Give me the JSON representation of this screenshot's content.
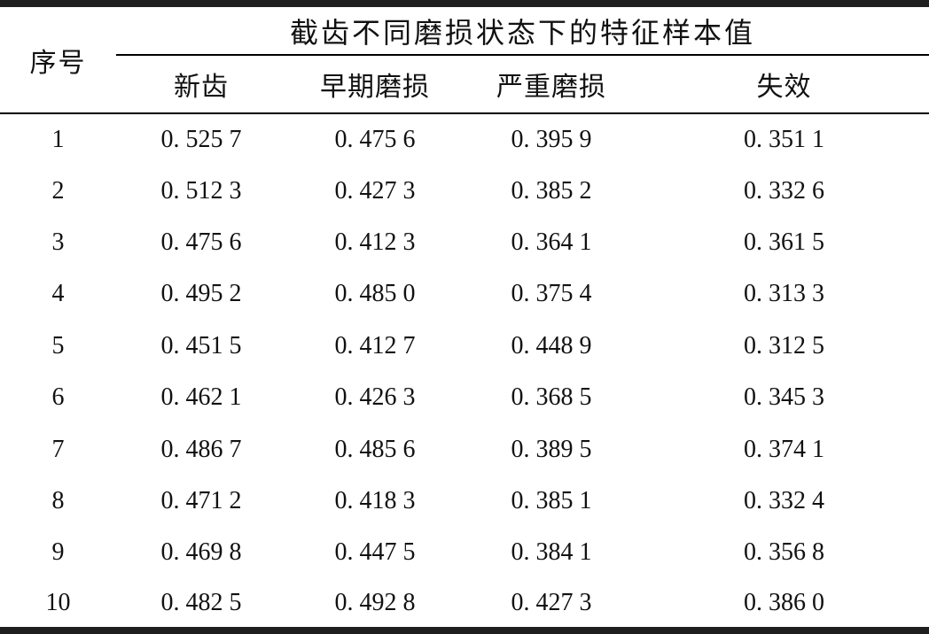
{
  "table": {
    "corner_header": "序号",
    "group_header": "截齿不同磨损状态下的特征样本值",
    "columns": [
      "新齿",
      "早期磨损",
      "严重磨损",
      "失效"
    ],
    "rows": [
      {
        "no": "1",
        "values": [
          "0. 525 7",
          "0. 475 6",
          "0. 395 9",
          "0. 351 1"
        ]
      },
      {
        "no": "2",
        "values": [
          "0. 512 3",
          "0. 427 3",
          "0. 385 2",
          "0. 332 6"
        ]
      },
      {
        "no": "3",
        "values": [
          "0. 475 6",
          "0. 412 3",
          "0. 364 1",
          "0. 361 5"
        ]
      },
      {
        "no": "4",
        "values": [
          "0. 495 2",
          "0. 485 0",
          "0. 375 4",
          "0. 313 3"
        ]
      },
      {
        "no": "5",
        "values": [
          "0. 451 5",
          "0. 412 7",
          "0. 448 9",
          "0. 312 5"
        ]
      },
      {
        "no": "6",
        "values": [
          "0. 462 1",
          "0. 426 3",
          "0. 368 5",
          "0. 345 3"
        ]
      },
      {
        "no": "7",
        "values": [
          "0. 486 7",
          "0. 485 6",
          "0. 389 5",
          "0. 374 1"
        ]
      },
      {
        "no": "8",
        "values": [
          "0. 471 2",
          "0. 418 3",
          "0. 385 1",
          "0. 332 4"
        ]
      },
      {
        "no": "9",
        "values": [
          "0. 469 8",
          "0. 447 5",
          "0. 384 1",
          "0. 356 8"
        ]
      },
      {
        "no": "10",
        "values": [
          "0. 482 5",
          "0. 492 8",
          "0. 427 3",
          "0. 386 0"
        ]
      }
    ]
  },
  "colors": {
    "background": "#ffffff",
    "text": "#111111",
    "thick_rule": "#1f1f1f",
    "thin_rule": "#000000"
  },
  "chart_data": {
    "type": "table",
    "title": "截齿不同磨损状态下的特征样本值",
    "row_label": "序号",
    "categories": [
      "新齿",
      "早期磨损",
      "严重磨损",
      "失效"
    ],
    "row_numbers": [
      1,
      2,
      3,
      4,
      5,
      6,
      7,
      8,
      9,
      10
    ],
    "series": [
      {
        "name": "新齿",
        "values": [
          0.5257,
          0.5123,
          0.4756,
          0.4952,
          0.4515,
          0.4621,
          0.4867,
          0.4712,
          0.4698,
          0.4825
        ]
      },
      {
        "name": "早期磨损",
        "values": [
          0.4756,
          0.4273,
          0.4123,
          0.485,
          0.4127,
          0.4263,
          0.4856,
          0.4183,
          0.4475,
          0.4928
        ]
      },
      {
        "name": "严重磨损",
        "values": [
          0.3959,
          0.3852,
          0.3641,
          0.3754,
          0.4489,
          0.3685,
          0.3895,
          0.3851,
          0.3841,
          0.4273
        ]
      },
      {
        "name": "失效",
        "values": [
          0.3511,
          0.3326,
          0.3615,
          0.3133,
          0.3125,
          0.3453,
          0.3741,
          0.3324,
          0.3568,
          0.386
        ]
      }
    ]
  }
}
